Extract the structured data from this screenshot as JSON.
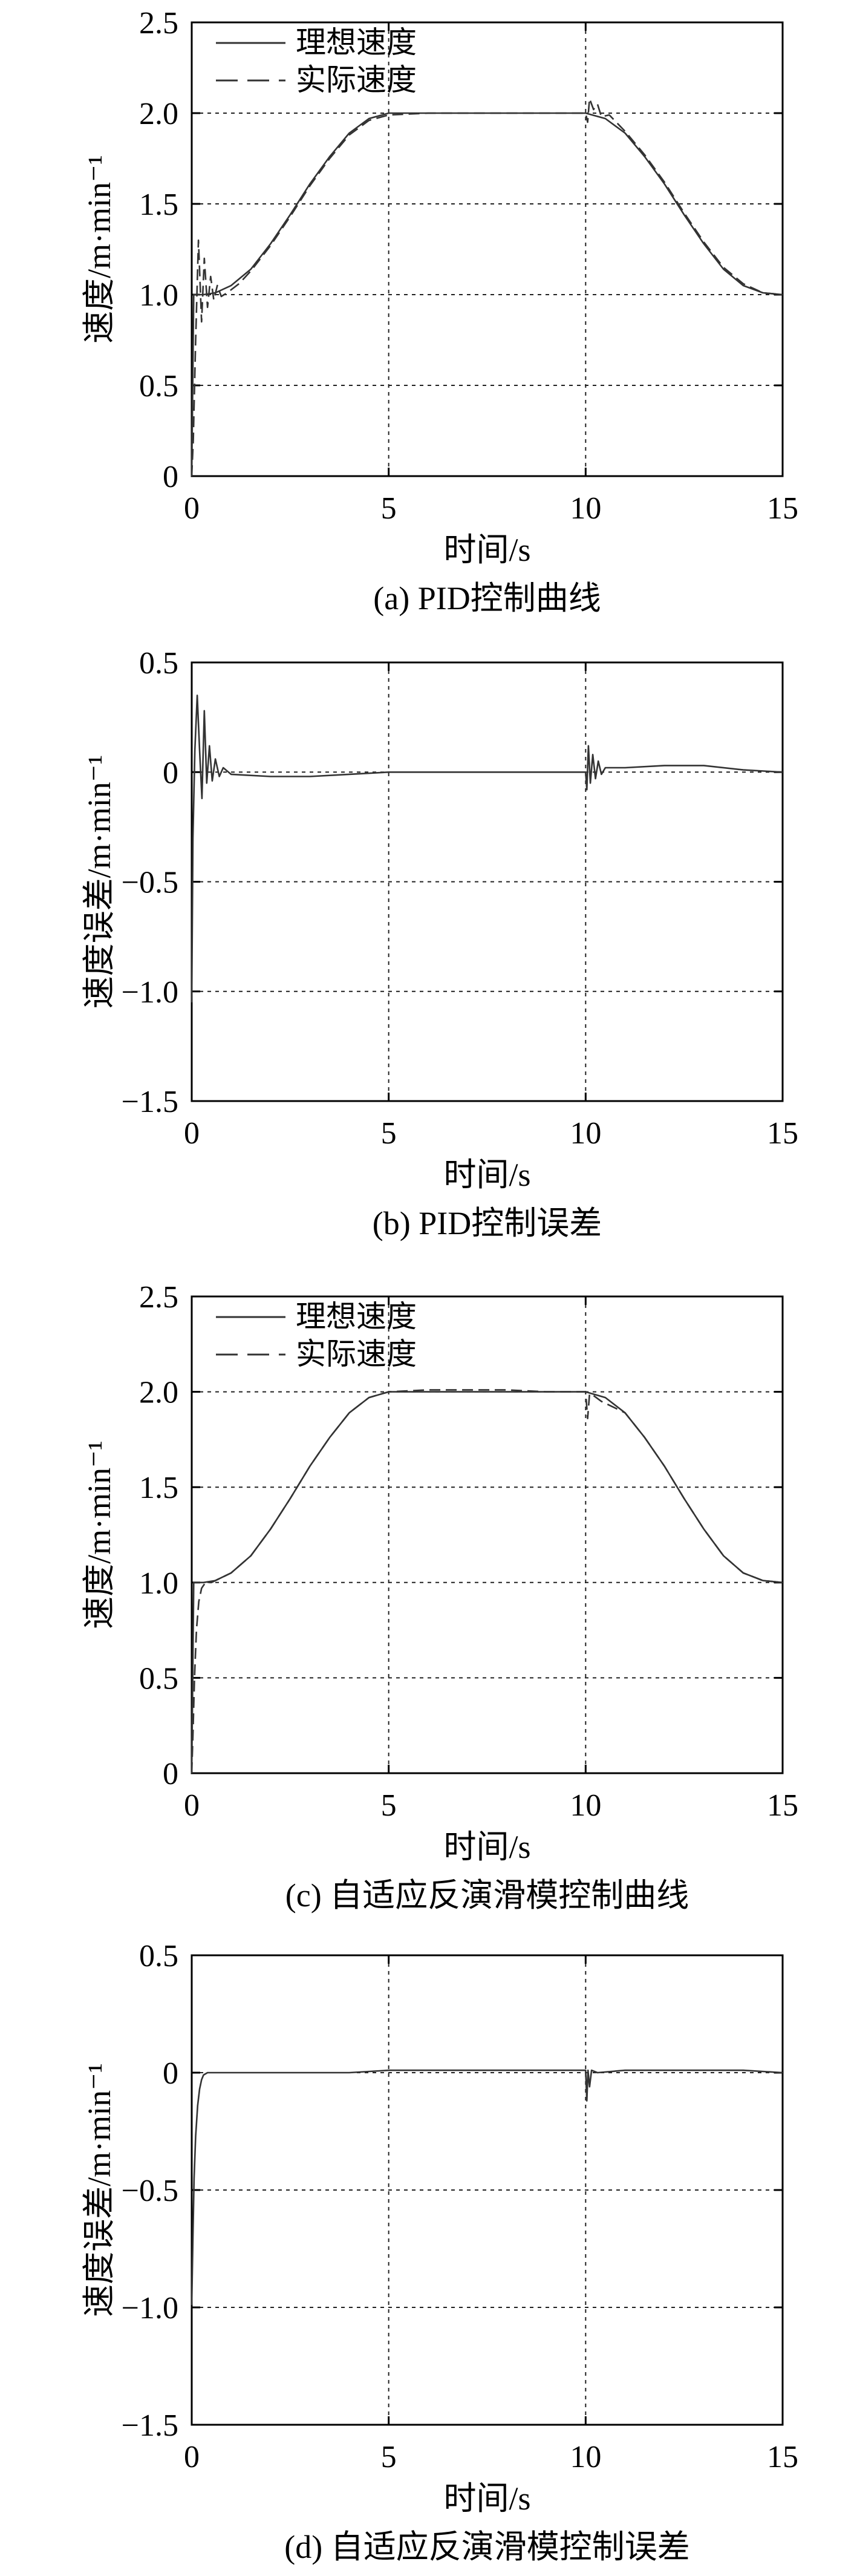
{
  "chart_data": [
    {
      "type": "line",
      "caption": "(a) PID控制曲线",
      "xlabel": "时间/s",
      "ylabel": "速度/m·min⁻¹",
      "xlim": [
        0,
        15
      ],
      "ylim": [
        0,
        2.5
      ],
      "xticks": [
        "0",
        "5",
        "10",
        "15"
      ],
      "yticks": [
        "0",
        "0.5",
        "1.0",
        "1.5",
        "2.0",
        "2.5"
      ],
      "grid": true,
      "legend_position": "top-left",
      "series": [
        {
          "name": "理想速度",
          "style": "solid",
          "x": [
            0,
            0.05,
            0.3,
            0.6,
            1,
            1.5,
            2,
            2.5,
            3,
            3.5,
            4,
            4.5,
            5,
            6,
            7,
            8,
            9,
            10,
            10.5,
            11,
            11.5,
            12,
            12.5,
            13,
            13.5,
            14,
            14.5,
            15
          ],
          "y": [
            0,
            1.0,
            1.0,
            1.01,
            1.05,
            1.14,
            1.28,
            1.44,
            1.61,
            1.76,
            1.89,
            1.97,
            2.0,
            2.0,
            2.0,
            2.0,
            2.0,
            2.0,
            1.97,
            1.89,
            1.76,
            1.61,
            1.44,
            1.28,
            1.14,
            1.05,
            1.01,
            1.0
          ]
        },
        {
          "name": "实际速度",
          "style": "dashed",
          "x": [
            0,
            0.04,
            0.1,
            0.17,
            0.25,
            0.32,
            0.4,
            0.48,
            0.56,
            0.65,
            0.75,
            0.9,
            1.2,
            1.5,
            2,
            2.5,
            3,
            3.5,
            4,
            4.5,
            5,
            6,
            7,
            8,
            9,
            10,
            10.05,
            10.1,
            10.2,
            10.3,
            10.4,
            10.6,
            11,
            11.5,
            12,
            12.5,
            13,
            13.5,
            14,
            14.5,
            15
          ],
          "y": [
            0,
            0.2,
            0.75,
            1.3,
            0.85,
            1.2,
            0.93,
            1.1,
            0.97,
            1.05,
            0.99,
            1.01,
            1.06,
            1.13,
            1.27,
            1.43,
            1.6,
            1.75,
            1.88,
            1.96,
            1.99,
            2.0,
            2.0,
            2.0,
            2.0,
            2.0,
            1.95,
            2.08,
            2.02,
            2.05,
            1.98,
            1.99,
            1.9,
            1.77,
            1.62,
            1.45,
            1.29,
            1.15,
            1.06,
            1.01,
            1.0
          ]
        }
      ]
    },
    {
      "type": "line",
      "caption": "(b) PID控制误差",
      "xlabel": "时间/s",
      "ylabel": "速度误差/m·min⁻¹",
      "xlim": [
        0,
        15
      ],
      "ylim": [
        -1.5,
        0.5
      ],
      "xticks": [
        "0",
        "5",
        "10",
        "15"
      ],
      "yticks": [
        "-1.5",
        "-1.0",
        "-0.5",
        "0",
        "0.5"
      ],
      "grid": true,
      "series": [
        {
          "name": "",
          "style": "solid",
          "x": [
            0,
            0.03,
            0.08,
            0.14,
            0.2,
            0.26,
            0.32,
            0.38,
            0.45,
            0.52,
            0.6,
            0.7,
            0.8,
            1,
            2,
            3,
            4,
            5,
            6,
            8,
            10,
            10.03,
            10.07,
            10.12,
            10.18,
            10.25,
            10.32,
            10.4,
            10.5,
            11,
            12,
            13,
            14,
            15
          ],
          "y": [
            -1.05,
            -0.3,
            0.1,
            0.35,
            0.1,
            -0.12,
            0.28,
            -0.05,
            0.12,
            -0.04,
            0.06,
            -0.02,
            0.02,
            -0.01,
            -0.02,
            -0.02,
            -0.01,
            0.0,
            0.0,
            0.0,
            0.0,
            -0.08,
            0.12,
            -0.05,
            0.08,
            -0.03,
            0.05,
            -0.01,
            0.02,
            0.02,
            0.03,
            0.03,
            0.01,
            0.0
          ]
        }
      ]
    },
    {
      "type": "line",
      "caption": "(c) 自适应反演滑模控制曲线",
      "xlabel": "时间/s",
      "ylabel": "速度/m·min⁻¹",
      "xlim": [
        0,
        15
      ],
      "ylim": [
        0,
        2.5
      ],
      "xticks": [
        "0",
        "5",
        "10",
        "15"
      ],
      "yticks": [
        "0",
        "0.5",
        "1.0",
        "1.5",
        "2.0",
        "2.5"
      ],
      "grid": true,
      "legend_position": "top-left",
      "series": [
        {
          "name": "理想速度",
          "style": "solid",
          "x": [
            0,
            0.05,
            0.3,
            0.6,
            1,
            1.5,
            2,
            2.5,
            3,
            3.5,
            4,
            4.5,
            5,
            6,
            7,
            8,
            9,
            10,
            10.5,
            11,
            11.5,
            12,
            12.5,
            13,
            13.5,
            14,
            14.5,
            15
          ],
          "y": [
            0,
            1.0,
            1.0,
            1.01,
            1.05,
            1.14,
            1.28,
            1.44,
            1.61,
            1.76,
            1.89,
            1.97,
            2.0,
            2.0,
            2.0,
            2.0,
            2.0,
            2.0,
            1.97,
            1.89,
            1.76,
            1.61,
            1.44,
            1.28,
            1.14,
            1.05,
            1.01,
            1.0
          ]
        },
        {
          "name": "实际速度",
          "style": "dashed",
          "x": [
            0,
            0.03,
            0.07,
            0.12,
            0.18,
            0.25,
            0.35,
            0.5,
            0.7,
            1,
            1.5,
            2,
            2.5,
            3,
            3.5,
            4,
            4.5,
            5,
            6,
            7,
            8,
            9,
            10,
            10.05,
            10.1,
            10.2,
            10.4,
            10.6,
            11,
            11.5,
            12,
            12.5,
            13,
            13.5,
            14,
            14.5,
            15
          ],
          "y": [
            0,
            0.2,
            0.5,
            0.75,
            0.9,
            0.97,
            1.0,
            1.0,
            1.02,
            1.05,
            1.14,
            1.28,
            1.44,
            1.61,
            1.76,
            1.89,
            1.97,
            2.0,
            2.01,
            2.01,
            2.01,
            2.0,
            2.0,
            1.86,
            1.99,
            1.98,
            1.95,
            1.93,
            1.89,
            1.76,
            1.61,
            1.44,
            1.28,
            1.14,
            1.05,
            1.01,
            1.0
          ]
        }
      ]
    },
    {
      "type": "line",
      "caption": "(d) 自适应反演滑模控制误差",
      "xlabel": "时间/s",
      "ylabel": "速度误差/m·min⁻¹",
      "xlim": [
        0,
        15
      ],
      "ylim": [
        -1.5,
        0.5
      ],
      "xticks": [
        "0",
        "5",
        "10",
        "15"
      ],
      "yticks": [
        "-1.5",
        "-1.0",
        "-0.5",
        "0",
        "0.5"
      ],
      "grid": true,
      "series": [
        {
          "name": "",
          "style": "solid",
          "x": [
            0,
            0.03,
            0.06,
            0.1,
            0.15,
            0.2,
            0.25,
            0.3,
            0.4,
            0.5,
            0.7,
            1,
            2,
            3,
            4,
            5,
            6,
            8,
            10,
            10.03,
            10.06,
            10.1,
            10.15,
            10.3,
            11,
            12,
            13,
            14,
            15
          ],
          "y": [
            -0.99,
            -0.7,
            -0.45,
            -0.27,
            -0.14,
            -0.07,
            -0.03,
            -0.01,
            0.0,
            0.0,
            0.0,
            0.0,
            0.0,
            0.0,
            0.0,
            0.01,
            0.01,
            0.01,
            0.01,
            -0.12,
            0.01,
            -0.06,
            0.01,
            0.0,
            0.01,
            0.01,
            0.01,
            0.01,
            0.0
          ]
        }
      ]
    }
  ]
}
